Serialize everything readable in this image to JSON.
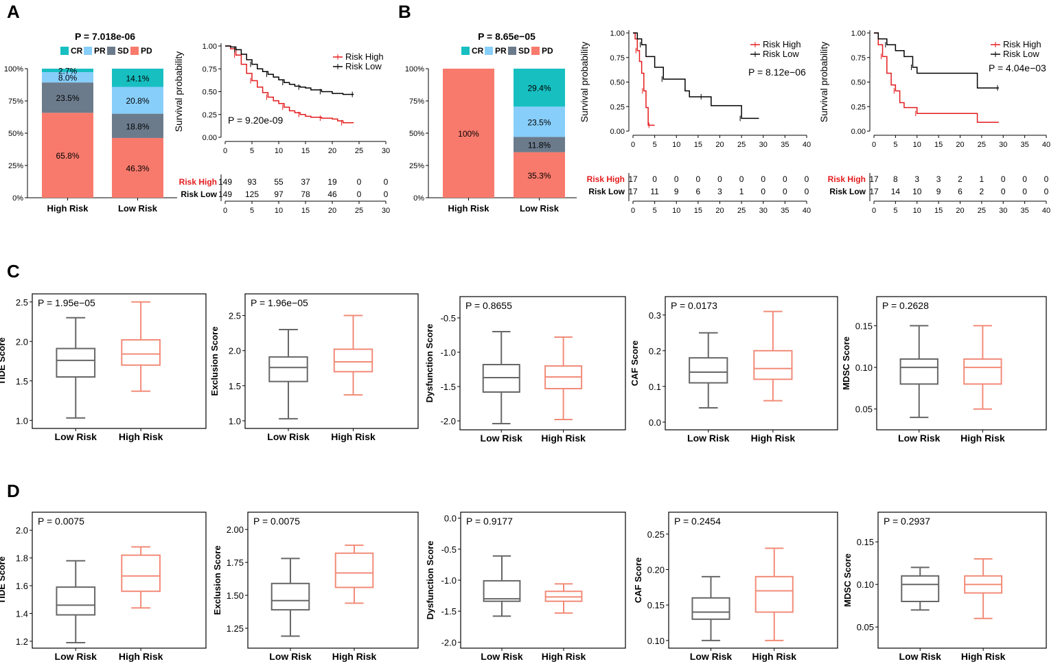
{
  "panels": {
    "A": "A",
    "B": "B",
    "C": "C",
    "D": "D"
  },
  "colors": {
    "CR": "#17bfc1",
    "PR": "#87cefa",
    "SD": "#6b7b8c",
    "PD": "#f87a6c",
    "risk_high": "#e41a1c",
    "risk_low": "#000000",
    "box_low": "#666666",
    "box_high": "#f28b78"
  },
  "chart_data": [
    {
      "id": "A-bar",
      "type": "bar",
      "stacked": true,
      "title": "P = 7.018e-06",
      "categories": [
        "High Risk",
        "Low Risk"
      ],
      "legend": [
        "CR",
        "PR",
        "SD",
        "PD"
      ],
      "series": [
        {
          "name": "PD",
          "values": [
            65.8,
            46.3
          ],
          "labels": [
            "65.8%",
            "46.3%"
          ]
        },
        {
          "name": "SD",
          "values": [
            23.5,
            18.8
          ],
          "labels": [
            "23.5%",
            "18.8%"
          ]
        },
        {
          "name": "PR",
          "values": [
            8.0,
            20.8
          ],
          "labels": [
            "8.0%",
            "20.8%"
          ]
        },
        {
          "name": "CR",
          "values": [
            2.7,
            14.1
          ],
          "labels": [
            "2.7%",
            "14.1%"
          ]
        }
      ],
      "yticks": [
        "0%",
        "25%",
        "50%",
        "75%",
        "100%"
      ],
      "ylim": [
        0,
        100
      ]
    },
    {
      "id": "A-km",
      "type": "line",
      "ylabel": "Survival probability",
      "pvalue": "P = 9.20e-09",
      "xlim": [
        0,
        30
      ],
      "ylim": [
        0,
        1
      ],
      "xticks": [
        "0",
        "5",
        "10",
        "15",
        "20",
        "25",
        "30"
      ],
      "yticks": [
        "0.00",
        "0.25",
        "0.50",
        "0.75",
        "1.00"
      ],
      "series": [
        {
          "name": "Risk High",
          "color": "#e41a1c",
          "x": [
            0,
            1,
            2,
            3,
            4,
            5,
            6,
            7,
            8,
            9,
            10,
            11,
            12,
            13,
            14,
            15,
            16,
            18,
            20,
            21,
            22,
            24
          ],
          "y": [
            1.0,
            0.97,
            0.9,
            0.8,
            0.7,
            0.62,
            0.55,
            0.49,
            0.44,
            0.4,
            0.37,
            0.33,
            0.29,
            0.27,
            0.25,
            0.23,
            0.22,
            0.21,
            0.2,
            0.18,
            0.16,
            0.16
          ]
        },
        {
          "name": "Risk Low",
          "color": "#000000",
          "x": [
            0,
            1,
            2,
            3,
            4,
            5,
            6,
            7,
            8,
            9,
            10,
            11,
            12,
            13,
            14,
            15,
            16,
            18,
            20,
            22,
            24
          ],
          "y": [
            1.0,
            0.99,
            0.96,
            0.91,
            0.85,
            0.8,
            0.75,
            0.72,
            0.69,
            0.66,
            0.63,
            0.6,
            0.58,
            0.56,
            0.55,
            0.54,
            0.52,
            0.5,
            0.48,
            0.47,
            0.47
          ]
        }
      ],
      "risk_table": {
        "rows": [
          {
            "name": "Risk High",
            "values": [
              "149",
              "93",
              "55",
              "37",
              "19",
              "0",
              "0"
            ]
          },
          {
            "name": "Risk Low",
            "values": [
              "149",
              "125",
              "97",
              "78",
              "46",
              "0",
              "0"
            ]
          }
        ]
      }
    },
    {
      "id": "B-bar",
      "type": "bar",
      "stacked": true,
      "title": "P = 8.65e−05",
      "categories": [
        "High Risk",
        "Low Risk"
      ],
      "legend": [
        "CR",
        "PR",
        "SD",
        "PD"
      ],
      "series": [
        {
          "name": "PD",
          "values": [
            100,
            35.3
          ],
          "labels": [
            "100%",
            "35.3%"
          ]
        },
        {
          "name": "SD",
          "values": [
            0,
            11.8
          ],
          "labels": [
            "",
            "11.8%"
          ]
        },
        {
          "name": "PR",
          "values": [
            0,
            23.5
          ],
          "labels": [
            "",
            "23.5%"
          ]
        },
        {
          "name": "CR",
          "values": [
            0,
            29.4
          ],
          "labels": [
            "",
            "29.4%"
          ]
        }
      ],
      "yticks": [
        "0%",
        "25%",
        "50%",
        "75%",
        "100%"
      ],
      "ylim": [
        0,
        100
      ]
    },
    {
      "id": "B-km1",
      "type": "line",
      "ylabel": "Survival probability",
      "pvalue": "P = 8.12e−06",
      "xlim": [
        0,
        40
      ],
      "ylim": [
        0,
        1
      ],
      "xticks": [
        "0",
        "5",
        "10",
        "15",
        "20",
        "25",
        "30",
        "35",
        "40"
      ],
      "yticks": [
        "0.00",
        "0.25",
        "0.50",
        "0.75",
        "1.00"
      ],
      "series": [
        {
          "name": "Risk High",
          "color": "#e41a1c",
          "x": [
            0,
            0.5,
            1,
            1.5,
            2,
            2.5,
            3,
            3.5,
            4,
            5
          ],
          "y": [
            1.0,
            0.94,
            0.82,
            0.71,
            0.59,
            0.41,
            0.24,
            0.06,
            0.06,
            0.06
          ]
        },
        {
          "name": "Risk Low",
          "color": "#000000",
          "x": [
            0,
            1,
            2,
            3,
            5,
            7,
            12,
            13,
            16,
            18,
            24,
            25,
            29
          ],
          "y": [
            1.0,
            0.94,
            0.88,
            0.76,
            0.65,
            0.53,
            0.41,
            0.35,
            0.35,
            0.26,
            0.26,
            0.13,
            0.13
          ]
        }
      ],
      "risk_table": {
        "rows": [
          {
            "name": "Risk High",
            "values": [
              "17",
              "0",
              "0",
              "0",
              "0",
              "0",
              "0",
              "0",
              "0"
            ]
          },
          {
            "name": "Risk Low",
            "values": [
              "17",
              "11",
              "9",
              "6",
              "3",
              "1",
              "0",
              "0",
              "0"
            ]
          }
        ]
      }
    },
    {
      "id": "B-km2",
      "type": "line",
      "ylabel": "Survival probability",
      "pvalue": "P = 4.04e−03",
      "xlim": [
        0,
        40
      ],
      "ylim": [
        0,
        1
      ],
      "xticks": [
        "0",
        "5",
        "10",
        "15",
        "20",
        "25",
        "30",
        "35",
        "40"
      ],
      "yticks": [
        "0.00",
        "0.25",
        "0.50",
        "0.75",
        "1.00"
      ],
      "series": [
        {
          "name": "Risk High",
          "color": "#e41a1c",
          "x": [
            0,
            1,
            2,
            3,
            4,
            5,
            6,
            7,
            10,
            24,
            29
          ],
          "y": [
            1.0,
            0.88,
            0.76,
            0.59,
            0.47,
            0.41,
            0.29,
            0.24,
            0.18,
            0.09,
            0.09
          ]
        },
        {
          "name": "Risk Low",
          "color": "#000000",
          "x": [
            0,
            1,
            3,
            5,
            7,
            9,
            10,
            24,
            29
          ],
          "y": [
            1.0,
            0.94,
            0.88,
            0.82,
            0.76,
            0.65,
            0.59,
            0.44,
            0.44
          ]
        }
      ],
      "risk_table": {
        "rows": [
          {
            "name": "Risk High",
            "values": [
              "17",
              "8",
              "3",
              "3",
              "2",
              "1",
              "0",
              "0",
              "0"
            ]
          },
          {
            "name": "Risk Low",
            "values": [
              "17",
              "14",
              "10",
              "9",
              "6",
              "2",
              "0",
              "0",
              "0"
            ]
          }
        ]
      }
    },
    {
      "id": "C1",
      "type": "box",
      "ylabel": "TIDE Score",
      "pvalue": "P = 1.95e−05",
      "categories": [
        "Low Risk",
        "High Risk"
      ],
      "ylim": [
        0.95,
        2.55
      ],
      "yticks": [
        1.0,
        1.5,
        2.0,
        2.5
      ],
      "ytick_labels": [
        "1.0",
        "1.5",
        "2.0",
        "2.5"
      ],
      "boxes": [
        {
          "min": 1.03,
          "q1": 1.55,
          "median": 1.76,
          "q3": 1.91,
          "max": 2.3
        },
        {
          "min": 1.37,
          "q1": 1.7,
          "median": 1.84,
          "q3": 2.02,
          "max": 2.5
        }
      ]
    },
    {
      "id": "C2",
      "type": "box",
      "ylabel": "Exclusion Score",
      "pvalue": "P = 1.96e−05",
      "categories": [
        "Low Risk",
        "High Risk"
      ],
      "ylim": [
        0.95,
        2.75
      ],
      "yticks": [
        1.0,
        1.5,
        2.0,
        2.5
      ],
      "ytick_labels": [
        "1.0",
        "1.5",
        "2.0",
        "2.5"
      ],
      "boxes": [
        {
          "min": 1.03,
          "q1": 1.56,
          "median": 1.76,
          "q3": 1.91,
          "max": 2.3
        },
        {
          "min": 1.37,
          "q1": 1.7,
          "median": 1.84,
          "q3": 2.02,
          "max": 2.5
        }
      ]
    },
    {
      "id": "C3",
      "type": "box",
      "ylabel": "Dysfunction Score",
      "pvalue": "P = 0.8655",
      "categories": [
        "Low Risk",
        "High Risk"
      ],
      "ylim": [
        -2.07,
        -0.25
      ],
      "yticks": [
        -2.0,
        -1.5,
        -1.0,
        -0.5
      ],
      "ytick_labels": [
        "-2.0",
        "-1.5",
        "-1.0",
        "-0.5"
      ],
      "boxes": [
        {
          "min": -2.04,
          "q1": -1.58,
          "median": -1.37,
          "q3": -1.18,
          "max": -0.7
        },
        {
          "min": -1.98,
          "q1": -1.53,
          "median": -1.36,
          "q3": -1.2,
          "max": -0.78
        }
      ]
    },
    {
      "id": "C4",
      "type": "box",
      "ylabel": "CAF Score",
      "pvalue": "P = 0.0173",
      "categories": [
        "Low Risk",
        "High Risk"
      ],
      "ylim": [
        -0.01,
        0.34
      ],
      "yticks": [
        0.0,
        0.1,
        0.2,
        0.3
      ],
      "ytick_labels": [
        "0.0",
        "0.1",
        "0.2",
        "0.3"
      ],
      "boxes": [
        {
          "min": 0.04,
          "q1": 0.11,
          "median": 0.14,
          "q3": 0.18,
          "max": 0.25
        },
        {
          "min": 0.06,
          "q1": 0.12,
          "median": 0.15,
          "q3": 0.2,
          "max": 0.31
        }
      ]
    },
    {
      "id": "C5",
      "type": "box",
      "ylabel": "MDSC Score",
      "pvalue": "P = 0.2628",
      "categories": [
        "Low Risk",
        "High Risk"
      ],
      "ylim": [
        0.03,
        0.18
      ],
      "yticks": [
        0.05,
        0.1,
        0.15
      ],
      "ytick_labels": [
        "0.05",
        "0.10",
        "0.15"
      ],
      "boxes": [
        {
          "min": 0.04,
          "q1": 0.08,
          "median": 0.1,
          "q3": 0.11,
          "max": 0.15
        },
        {
          "min": 0.05,
          "q1": 0.08,
          "median": 0.1,
          "q3": 0.11,
          "max": 0.15
        }
      ]
    },
    {
      "id": "D1",
      "type": "box",
      "ylabel": "TIDE Score",
      "pvalue": "P = 0.0075",
      "categories": [
        "Low Risk",
        "High Risk"
      ],
      "ylim": [
        1.18,
        2.1
      ],
      "yticks": [
        1.2,
        1.4,
        1.6,
        1.8,
        2.0
      ],
      "ytick_labels": [
        "1.2",
        "1.4",
        "1.6",
        "1.8",
        "2.0"
      ],
      "boxes": [
        {
          "min": 1.19,
          "q1": 1.39,
          "median": 1.46,
          "q3": 1.59,
          "max": 1.78
        },
        {
          "min": 1.44,
          "q1": 1.56,
          "median": 1.67,
          "q3": 1.82,
          "max": 1.88
        }
      ]
    },
    {
      "id": "D2",
      "type": "box",
      "ylabel": "Exclusion Score",
      "pvalue": "P = 0.0075",
      "categories": [
        "Low Risk",
        "High Risk"
      ],
      "ylim": [
        1.13,
        2.1
      ],
      "yticks": [
        1.25,
        1.5,
        1.75,
        2.0
      ],
      "ytick_labels": [
        "1.25",
        "1.50",
        "1.75",
        "2.00"
      ],
      "boxes": [
        {
          "min": 1.19,
          "q1": 1.39,
          "median": 1.46,
          "q3": 1.59,
          "max": 1.78
        },
        {
          "min": 1.44,
          "q1": 1.56,
          "median": 1.67,
          "q3": 1.82,
          "max": 1.88
        }
      ]
    },
    {
      "id": "D3",
      "type": "box",
      "ylabel": "Dysfunction Score",
      "pvalue": "P = 0.9177",
      "categories": [
        "Low Risk",
        "High Risk"
      ],
      "ylim": [
        -2.03,
        0.03
      ],
      "yticks": [
        -2.0,
        -1.5,
        -1.0,
        -0.5,
        0.0
      ],
      "ytick_labels": [
        "-2.0",
        "-1.5",
        "-1.0",
        "-0.5",
        "0.0"
      ],
      "boxes": [
        {
          "min": -1.58,
          "q1": -1.34,
          "median": -1.3,
          "q3": -1.01,
          "max": -0.61
        },
        {
          "min": -1.53,
          "q1": -1.34,
          "median": -1.27,
          "q3": -1.18,
          "max": -1.06
        }
      ]
    },
    {
      "id": "D4",
      "type": "box",
      "ylabel": "CAF Score",
      "pvalue": "P = 0.2454",
      "categories": [
        "Low Risk",
        "High Risk"
      ],
      "ylim": [
        0.095,
        0.275
      ],
      "yticks": [
        0.1,
        0.15,
        0.2,
        0.25
      ],
      "ytick_labels": [
        "0.10",
        "0.15",
        "0.20",
        "0.25"
      ],
      "boxes": [
        {
          "min": 0.1,
          "q1": 0.13,
          "median": 0.14,
          "q3": 0.16,
          "max": 0.19
        },
        {
          "min": 0.1,
          "q1": 0.14,
          "median": 0.17,
          "q3": 0.19,
          "max": 0.23
        }
      ]
    },
    {
      "id": "D5",
      "type": "box",
      "ylabel": "MDSC Score",
      "pvalue": "P = 0.2937",
      "categories": [
        "Low Risk",
        "High Risk"
      ],
      "ylim": [
        0.03,
        0.18
      ],
      "yticks": [
        0.05,
        0.1,
        0.15
      ],
      "ytick_labels": [
        "0.05",
        "0.10",
        "0.15"
      ],
      "boxes": [
        {
          "min": 0.07,
          "q1": 0.08,
          "median": 0.1,
          "q3": 0.11,
          "max": 0.12
        },
        {
          "min": 0.06,
          "q1": 0.09,
          "median": 0.1,
          "q3": 0.11,
          "max": 0.13
        }
      ]
    }
  ]
}
